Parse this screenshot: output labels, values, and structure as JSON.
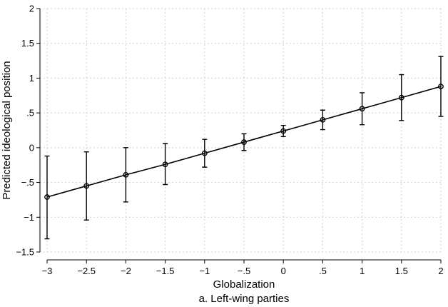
{
  "chart_data": {
    "type": "line",
    "title": "",
    "caption": "a. Left-wing parties",
    "xlabel": "Globalization",
    "ylabel": "Predicted ideological position",
    "xlim": [
      -3,
      2
    ],
    "ylim": [
      -1.5,
      2
    ],
    "x_ticks": [
      -3,
      -2.5,
      -2,
      -1.5,
      -1,
      -0.5,
      0,
      0.5,
      1,
      1.5,
      2
    ],
    "x_tick_labels": [
      "−3",
      "−2.5",
      "−2",
      "−1.5",
      "−1",
      "−.5",
      "0",
      ".5",
      "1",
      "1.5",
      "2"
    ],
    "y_ticks": [
      -1.5,
      -1,
      -0.5,
      0,
      0.5,
      1,
      1.5,
      2
    ],
    "y_tick_labels": [
      "−1.5",
      "−1",
      "−.5",
      "0",
      ".5",
      "1",
      "1.5",
      "2"
    ],
    "grid": true,
    "series": [
      {
        "x": [
          -3,
          -2.5,
          -2,
          -1.5,
          -1,
          -0.5,
          0,
          0.5,
          1,
          1.5,
          2
        ],
        "y": [
          -0.71,
          -0.55,
          -0.39,
          -0.24,
          -0.08,
          0.08,
          0.24,
          0.4,
          0.56,
          0.72,
          0.88
        ],
        "ci_low": [
          -1.31,
          -1.04,
          -0.78,
          -0.53,
          -0.28,
          -0.04,
          0.16,
          0.26,
          0.33,
          0.39,
          0.45
        ],
        "ci_high": [
          -0.12,
          -0.06,
          0.0,
          0.06,
          0.12,
          0.2,
          0.32,
          0.54,
          0.79,
          1.05,
          1.31
        ]
      }
    ]
  }
}
